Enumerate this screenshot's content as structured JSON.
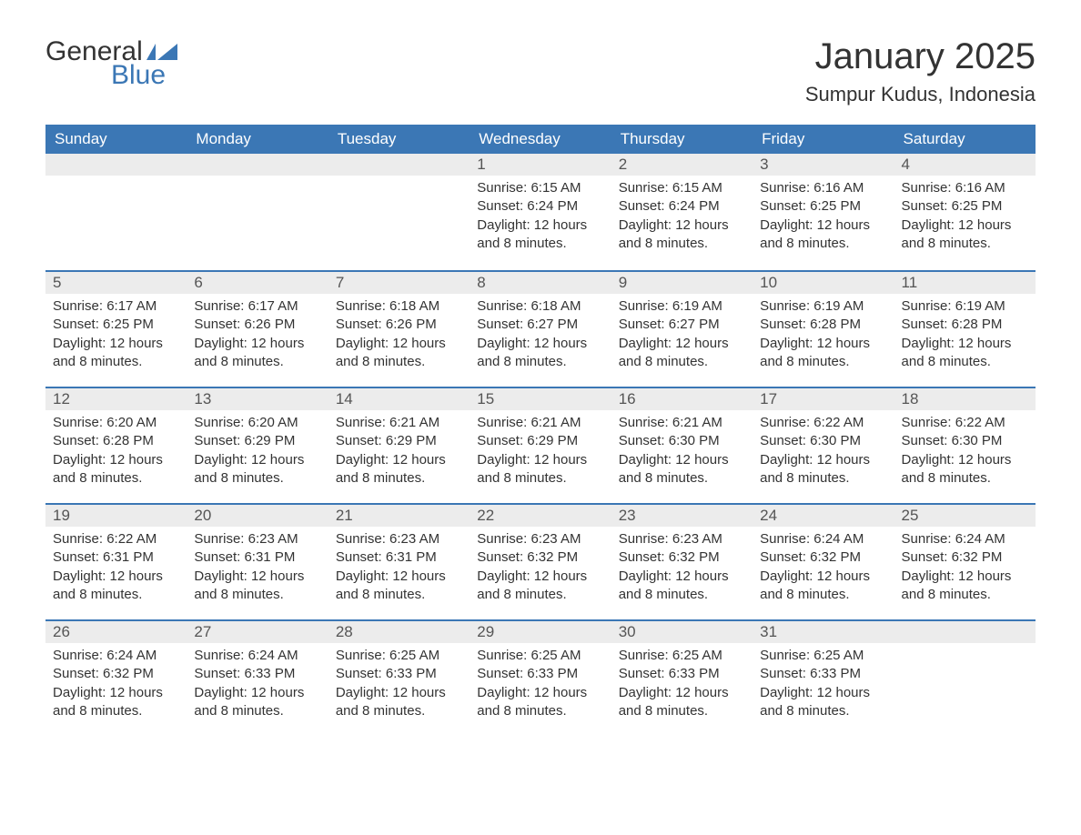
{
  "brand": {
    "general": "General",
    "blue": "Blue",
    "accent_color": "#3b77b5"
  },
  "title": "January 2025",
  "location": "Sumpur Kudus, Indonesia",
  "weekdays": [
    "Sunday",
    "Monday",
    "Tuesday",
    "Wednesday",
    "Thursday",
    "Friday",
    "Saturday"
  ],
  "colors": {
    "header_bg": "#3b77b5",
    "header_text": "#ffffff",
    "daynum_bg": "#ececec",
    "row_divider": "#3b77b5",
    "body_text": "#333333"
  },
  "fonts": {
    "title_pt": 40,
    "location_pt": 22,
    "weekday_pt": 17,
    "daynum_pt": 17,
    "body_pt": 15
  },
  "weeks": [
    [
      null,
      null,
      null,
      {
        "n": "1",
        "sunrise": "Sunrise: 6:15 AM",
        "sunset": "Sunset: 6:24 PM",
        "d1": "Daylight: 12 hours",
        "d2": "and 8 minutes."
      },
      {
        "n": "2",
        "sunrise": "Sunrise: 6:15 AM",
        "sunset": "Sunset: 6:24 PM",
        "d1": "Daylight: 12 hours",
        "d2": "and 8 minutes."
      },
      {
        "n": "3",
        "sunrise": "Sunrise: 6:16 AM",
        "sunset": "Sunset: 6:25 PM",
        "d1": "Daylight: 12 hours",
        "d2": "and 8 minutes."
      },
      {
        "n": "4",
        "sunrise": "Sunrise: 6:16 AM",
        "sunset": "Sunset: 6:25 PM",
        "d1": "Daylight: 12 hours",
        "d2": "and 8 minutes."
      }
    ],
    [
      {
        "n": "5",
        "sunrise": "Sunrise: 6:17 AM",
        "sunset": "Sunset: 6:25 PM",
        "d1": "Daylight: 12 hours",
        "d2": "and 8 minutes."
      },
      {
        "n": "6",
        "sunrise": "Sunrise: 6:17 AM",
        "sunset": "Sunset: 6:26 PM",
        "d1": "Daylight: 12 hours",
        "d2": "and 8 minutes."
      },
      {
        "n": "7",
        "sunrise": "Sunrise: 6:18 AM",
        "sunset": "Sunset: 6:26 PM",
        "d1": "Daylight: 12 hours",
        "d2": "and 8 minutes."
      },
      {
        "n": "8",
        "sunrise": "Sunrise: 6:18 AM",
        "sunset": "Sunset: 6:27 PM",
        "d1": "Daylight: 12 hours",
        "d2": "and 8 minutes."
      },
      {
        "n": "9",
        "sunrise": "Sunrise: 6:19 AM",
        "sunset": "Sunset: 6:27 PM",
        "d1": "Daylight: 12 hours",
        "d2": "and 8 minutes."
      },
      {
        "n": "10",
        "sunrise": "Sunrise: 6:19 AM",
        "sunset": "Sunset: 6:28 PM",
        "d1": "Daylight: 12 hours",
        "d2": "and 8 minutes."
      },
      {
        "n": "11",
        "sunrise": "Sunrise: 6:19 AM",
        "sunset": "Sunset: 6:28 PM",
        "d1": "Daylight: 12 hours",
        "d2": "and 8 minutes."
      }
    ],
    [
      {
        "n": "12",
        "sunrise": "Sunrise: 6:20 AM",
        "sunset": "Sunset: 6:28 PM",
        "d1": "Daylight: 12 hours",
        "d2": "and 8 minutes."
      },
      {
        "n": "13",
        "sunrise": "Sunrise: 6:20 AM",
        "sunset": "Sunset: 6:29 PM",
        "d1": "Daylight: 12 hours",
        "d2": "and 8 minutes."
      },
      {
        "n": "14",
        "sunrise": "Sunrise: 6:21 AM",
        "sunset": "Sunset: 6:29 PM",
        "d1": "Daylight: 12 hours",
        "d2": "and 8 minutes."
      },
      {
        "n": "15",
        "sunrise": "Sunrise: 6:21 AM",
        "sunset": "Sunset: 6:29 PM",
        "d1": "Daylight: 12 hours",
        "d2": "and 8 minutes."
      },
      {
        "n": "16",
        "sunrise": "Sunrise: 6:21 AM",
        "sunset": "Sunset: 6:30 PM",
        "d1": "Daylight: 12 hours",
        "d2": "and 8 minutes."
      },
      {
        "n": "17",
        "sunrise": "Sunrise: 6:22 AM",
        "sunset": "Sunset: 6:30 PM",
        "d1": "Daylight: 12 hours",
        "d2": "and 8 minutes."
      },
      {
        "n": "18",
        "sunrise": "Sunrise: 6:22 AM",
        "sunset": "Sunset: 6:30 PM",
        "d1": "Daylight: 12 hours",
        "d2": "and 8 minutes."
      }
    ],
    [
      {
        "n": "19",
        "sunrise": "Sunrise: 6:22 AM",
        "sunset": "Sunset: 6:31 PM",
        "d1": "Daylight: 12 hours",
        "d2": "and 8 minutes."
      },
      {
        "n": "20",
        "sunrise": "Sunrise: 6:23 AM",
        "sunset": "Sunset: 6:31 PM",
        "d1": "Daylight: 12 hours",
        "d2": "and 8 minutes."
      },
      {
        "n": "21",
        "sunrise": "Sunrise: 6:23 AM",
        "sunset": "Sunset: 6:31 PM",
        "d1": "Daylight: 12 hours",
        "d2": "and 8 minutes."
      },
      {
        "n": "22",
        "sunrise": "Sunrise: 6:23 AM",
        "sunset": "Sunset: 6:32 PM",
        "d1": "Daylight: 12 hours",
        "d2": "and 8 minutes."
      },
      {
        "n": "23",
        "sunrise": "Sunrise: 6:23 AM",
        "sunset": "Sunset: 6:32 PM",
        "d1": "Daylight: 12 hours",
        "d2": "and 8 minutes."
      },
      {
        "n": "24",
        "sunrise": "Sunrise: 6:24 AM",
        "sunset": "Sunset: 6:32 PM",
        "d1": "Daylight: 12 hours",
        "d2": "and 8 minutes."
      },
      {
        "n": "25",
        "sunrise": "Sunrise: 6:24 AM",
        "sunset": "Sunset: 6:32 PM",
        "d1": "Daylight: 12 hours",
        "d2": "and 8 minutes."
      }
    ],
    [
      {
        "n": "26",
        "sunrise": "Sunrise: 6:24 AM",
        "sunset": "Sunset: 6:32 PM",
        "d1": "Daylight: 12 hours",
        "d2": "and 8 minutes."
      },
      {
        "n": "27",
        "sunrise": "Sunrise: 6:24 AM",
        "sunset": "Sunset: 6:33 PM",
        "d1": "Daylight: 12 hours",
        "d2": "and 8 minutes."
      },
      {
        "n": "28",
        "sunrise": "Sunrise: 6:25 AM",
        "sunset": "Sunset: 6:33 PM",
        "d1": "Daylight: 12 hours",
        "d2": "and 8 minutes."
      },
      {
        "n": "29",
        "sunrise": "Sunrise: 6:25 AM",
        "sunset": "Sunset: 6:33 PM",
        "d1": "Daylight: 12 hours",
        "d2": "and 8 minutes."
      },
      {
        "n": "30",
        "sunrise": "Sunrise: 6:25 AM",
        "sunset": "Sunset: 6:33 PM",
        "d1": "Daylight: 12 hours",
        "d2": "and 8 minutes."
      },
      {
        "n": "31",
        "sunrise": "Sunrise: 6:25 AM",
        "sunset": "Sunset: 6:33 PM",
        "d1": "Daylight: 12 hours",
        "d2": "and 8 minutes."
      },
      null
    ]
  ]
}
